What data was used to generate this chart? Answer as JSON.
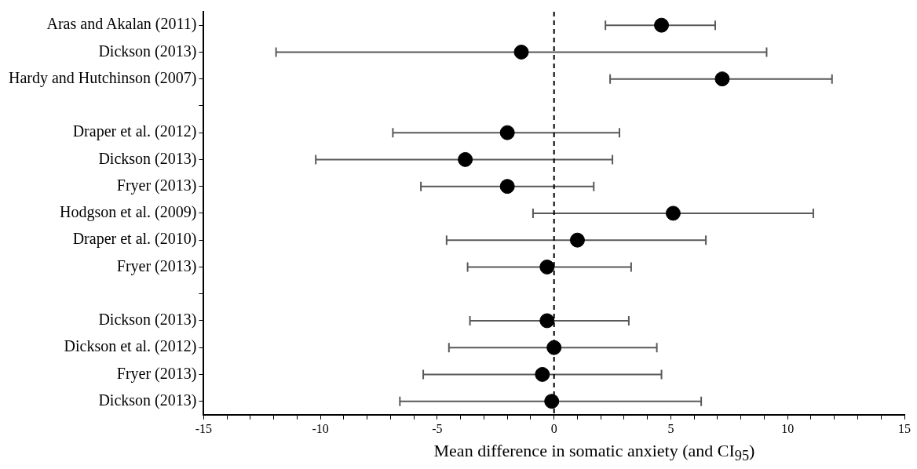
{
  "chart_data": {
    "type": "scatter",
    "orientation": "horizontal",
    "xlabel": "Mean difference in somatic anxiety (and CI$_{95}$)",
    "categories": [
      "Aras and Akalan (2011)",
      "Dickson (2013)",
      "Hardy and Hutchinson (2007)",
      null,
      "Draper et al. (2012)",
      "Dickson (2013)",
      "Fryer (2013)",
      "Hodgson et al. (2009)",
      "Draper et al. (2010)",
      "Fryer (2013)",
      null,
      "Dickson (2013)",
      "Dickson et al. (2012)",
      "Fryer (2013)",
      "Dickson (2013)"
    ],
    "values": [
      4.6,
      -1.4,
      7.2,
      null,
      -2.0,
      -3.8,
      -2.0,
      5.1,
      1.0,
      -0.3,
      null,
      -0.3,
      0.0,
      -0.5,
      -0.1
    ],
    "errors": [
      [
        2.2,
        6.9
      ],
      [
        -11.9,
        9.1
      ],
      [
        2.4,
        11.9
      ],
      null,
      [
        -6.9,
        2.8
      ],
      [
        -10.2,
        2.5
      ],
      [
        -5.7,
        1.7
      ],
      [
        -0.9,
        11.1
      ],
      [
        -4.6,
        6.5
      ],
      [
        -3.7,
        3.3
      ],
      null,
      [
        -3.6,
        3.2
      ],
      [
        -4.5,
        4.4
      ],
      [
        -5.6,
        4.6
      ],
      [
        -6.6,
        6.3
      ]
    ],
    "color": "#000000",
    "marker": "circle",
    "xlim": [
      -15,
      15
    ],
    "xticks": [
      -15,
      {
        "value": -14,
        "label": null
      },
      {
        "value": -13,
        "label": null
      },
      {
        "value": -12,
        "label": null
      },
      {
        "value": -11,
        "label": null
      },
      -10,
      {
        "value": -9,
        "label": null
      },
      {
        "value": -8,
        "label": null
      },
      {
        "value": -7,
        "label": null
      },
      {
        "value": -6,
        "label": null
      },
      -5,
      {
        "value": -4,
        "label": null
      },
      {
        "value": -3,
        "label": null
      },
      {
        "value": -2,
        "label": null
      },
      {
        "value": -1,
        "label": null
      },
      0,
      {
        "value": 1,
        "label": null
      },
      {
        "value": 2,
        "label": null
      },
      {
        "value": 3,
        "label": null
      },
      {
        "value": 4,
        "label": null
      },
      5,
      {
        "value": 6,
        "label": null
      },
      {
        "value": 7,
        "label": null
      },
      {
        "value": 8,
        "label": null
      },
      {
        "value": 9,
        "label": null
      },
      10,
      {
        "value": 11,
        "label": null
      },
      {
        "value": 12,
        "label": null
      },
      {
        "value": 13,
        "label": null
      },
      {
        "value": 14,
        "label": null
      },
      15
    ],
    "ref_lines": [
      {
        "axis": "x",
        "value": 0,
        "color": "#000000",
        "line_style": "dashed"
      }
    ]
  }
}
